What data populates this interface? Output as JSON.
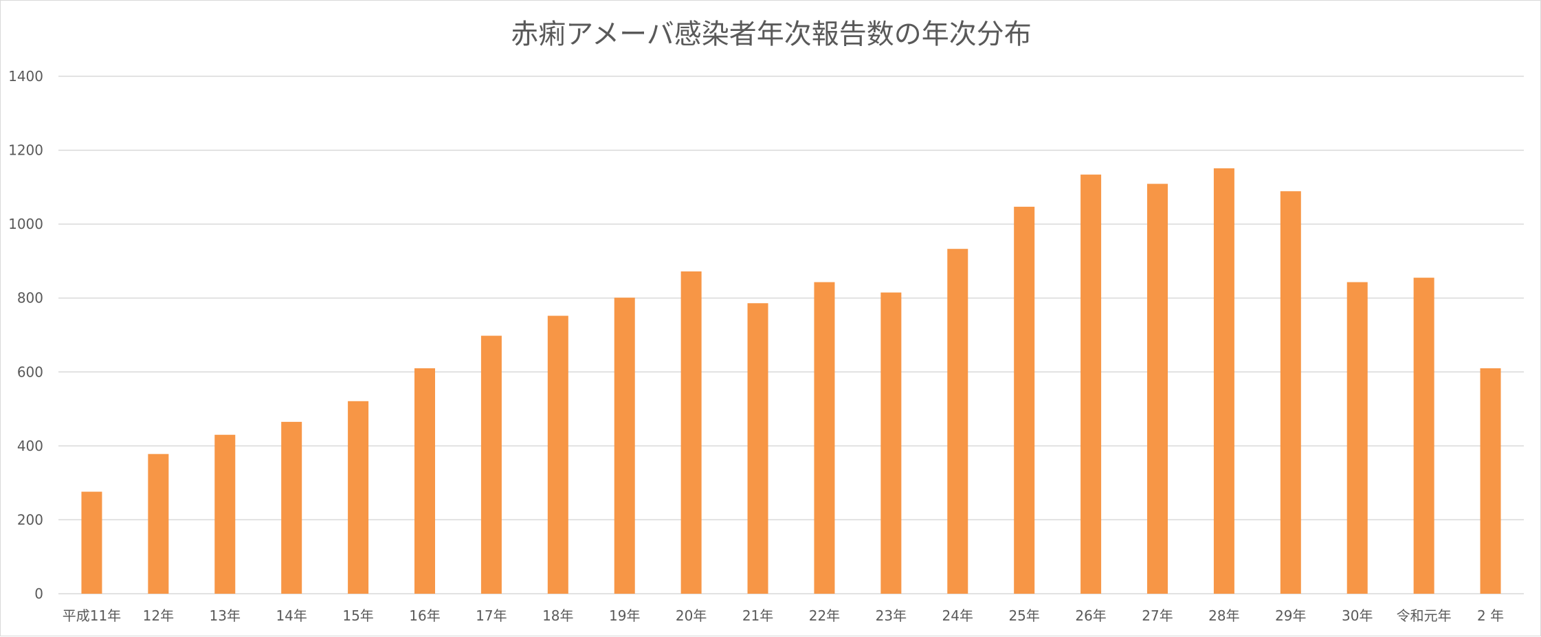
{
  "chart_data": {
    "type": "bar",
    "title": "赤痢アメーバ感染者年次報告数の年次分布",
    "xlabel": "",
    "ylabel": "",
    "ylim": [
      0,
      1400
    ],
    "yticks": [
      0,
      200,
      400,
      600,
      800,
      1000,
      1200,
      1400
    ],
    "grid": true,
    "legend": "none",
    "bar_color": "#f79646",
    "categories": [
      "平成11年",
      "12年",
      "13年",
      "14年",
      "15年",
      "16年",
      "17年",
      "18年",
      "19年",
      "20年",
      "21年",
      "22年",
      "23年",
      "24年",
      "25年",
      "26年",
      "27年",
      "28年",
      "29年",
      "30年",
      "令和元年",
      "2 年"
    ],
    "values": [
      276,
      378,
      430,
      465,
      521,
      610,
      698,
      752,
      801,
      872,
      786,
      843,
      815,
      933,
      1047,
      1134,
      1109,
      1151,
      1089,
      843,
      855,
      610
    ]
  }
}
